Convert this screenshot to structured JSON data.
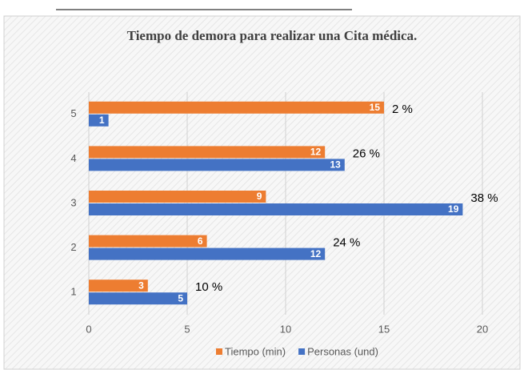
{
  "chart_data": {
    "type": "hbar",
    "title": "Tiempo de demora para realizar una Cita médica.",
    "categories": [
      "1",
      "2",
      "3",
      "4",
      "5"
    ],
    "series": [
      {
        "name": "Tiempo (min)",
        "color": "#ed7d31",
        "values": [
          3,
          6,
          9,
          12,
          15
        ]
      },
      {
        "name": "Personas (und)",
        "color": "#4472c4",
        "values": [
          5,
          12,
          19,
          13,
          1
        ]
      }
    ],
    "annotations": [
      "10 %",
      "24 %",
      "38 %",
      "26 %",
      "2 %"
    ],
    "xlim": [
      0,
      20
    ],
    "xticks": [
      0,
      5,
      10,
      15,
      20
    ],
    "grid": true,
    "legend": "bottom"
  }
}
